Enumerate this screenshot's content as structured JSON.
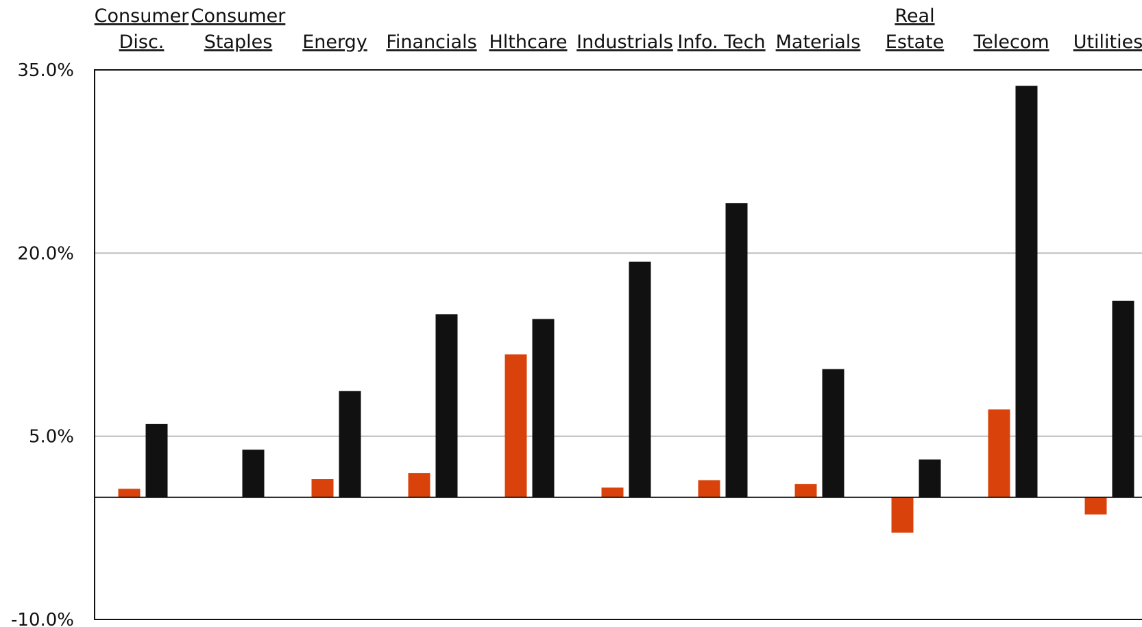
{
  "chart_data": {
    "type": "bar",
    "categories": [
      [
        "Consumer",
        "Disc."
      ],
      [
        "Consumer",
        "Staples"
      ],
      [
        "Energy"
      ],
      [
        "Financials"
      ],
      [
        "Hlthcare"
      ],
      [
        "Industrials"
      ],
      [
        "Info. Tech"
      ],
      [
        "Materials"
      ],
      [
        "Real",
        "Estate"
      ],
      [
        "Telecom"
      ],
      [
        "Utilities"
      ]
    ],
    "series": [
      {
        "color": "#d9430b",
        "values": [
          0.7,
          0.0,
          1.5,
          2.0,
          11.7,
          0.8,
          1.4,
          1.1,
          -2.9,
          7.2,
          -1.4
        ]
      },
      {
        "color": "#111111",
        "values": [
          6.0,
          3.9,
          8.7,
          15.0,
          14.6,
          19.3,
          24.1,
          10.5,
          3.1,
          33.7,
          16.1
        ]
      }
    ],
    "yticks": [
      "35.0%",
      "20.0%",
      "5.0%",
      "-10.0%"
    ],
    "ytick_values": [
      35,
      20,
      5,
      -10
    ],
    "ylim": [
      -10,
      35
    ],
    "category_label_position": "top",
    "grid": true,
    "gridline_color": "#bbbbbb",
    "zero_line_color": "#111111"
  }
}
